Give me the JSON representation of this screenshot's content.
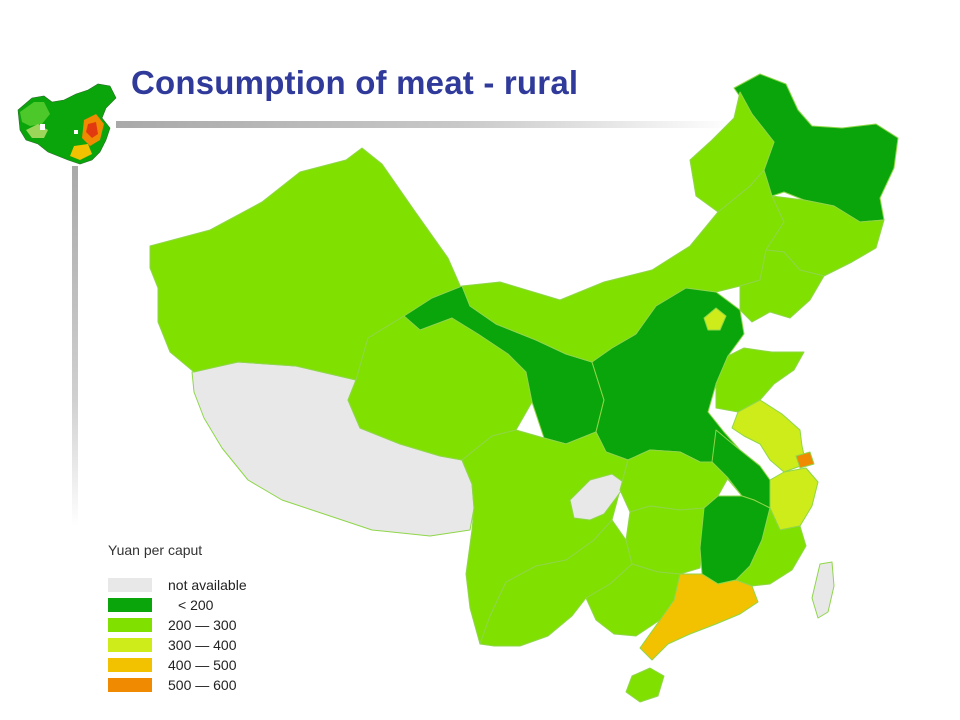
{
  "title": "Consumption of meat - rural",
  "legend": {
    "title": "Yuan per caput",
    "items": [
      {
        "label": "not available",
        "color": "#e8e8e8"
      },
      {
        "label": "<  200",
        "color": "#0aa50a"
      },
      {
        "label": "200  —  300",
        "color": "#80e000"
      },
      {
        "label": "300  —  400",
        "color": "#cdec1a"
      },
      {
        "label": "400  —  500",
        "color": "#f2c200"
      },
      {
        "label": "500  —  600",
        "color": "#f08a00"
      }
    ]
  },
  "colors": {
    "title": "#2f3a9a",
    "na": "#e8e8e8",
    "lt200": "#0aa50a",
    "c200_300": "#80e000",
    "c300_400": "#cdec1a",
    "c400_500": "#f2c200",
    "c500_600": "#f08a00"
  }
}
